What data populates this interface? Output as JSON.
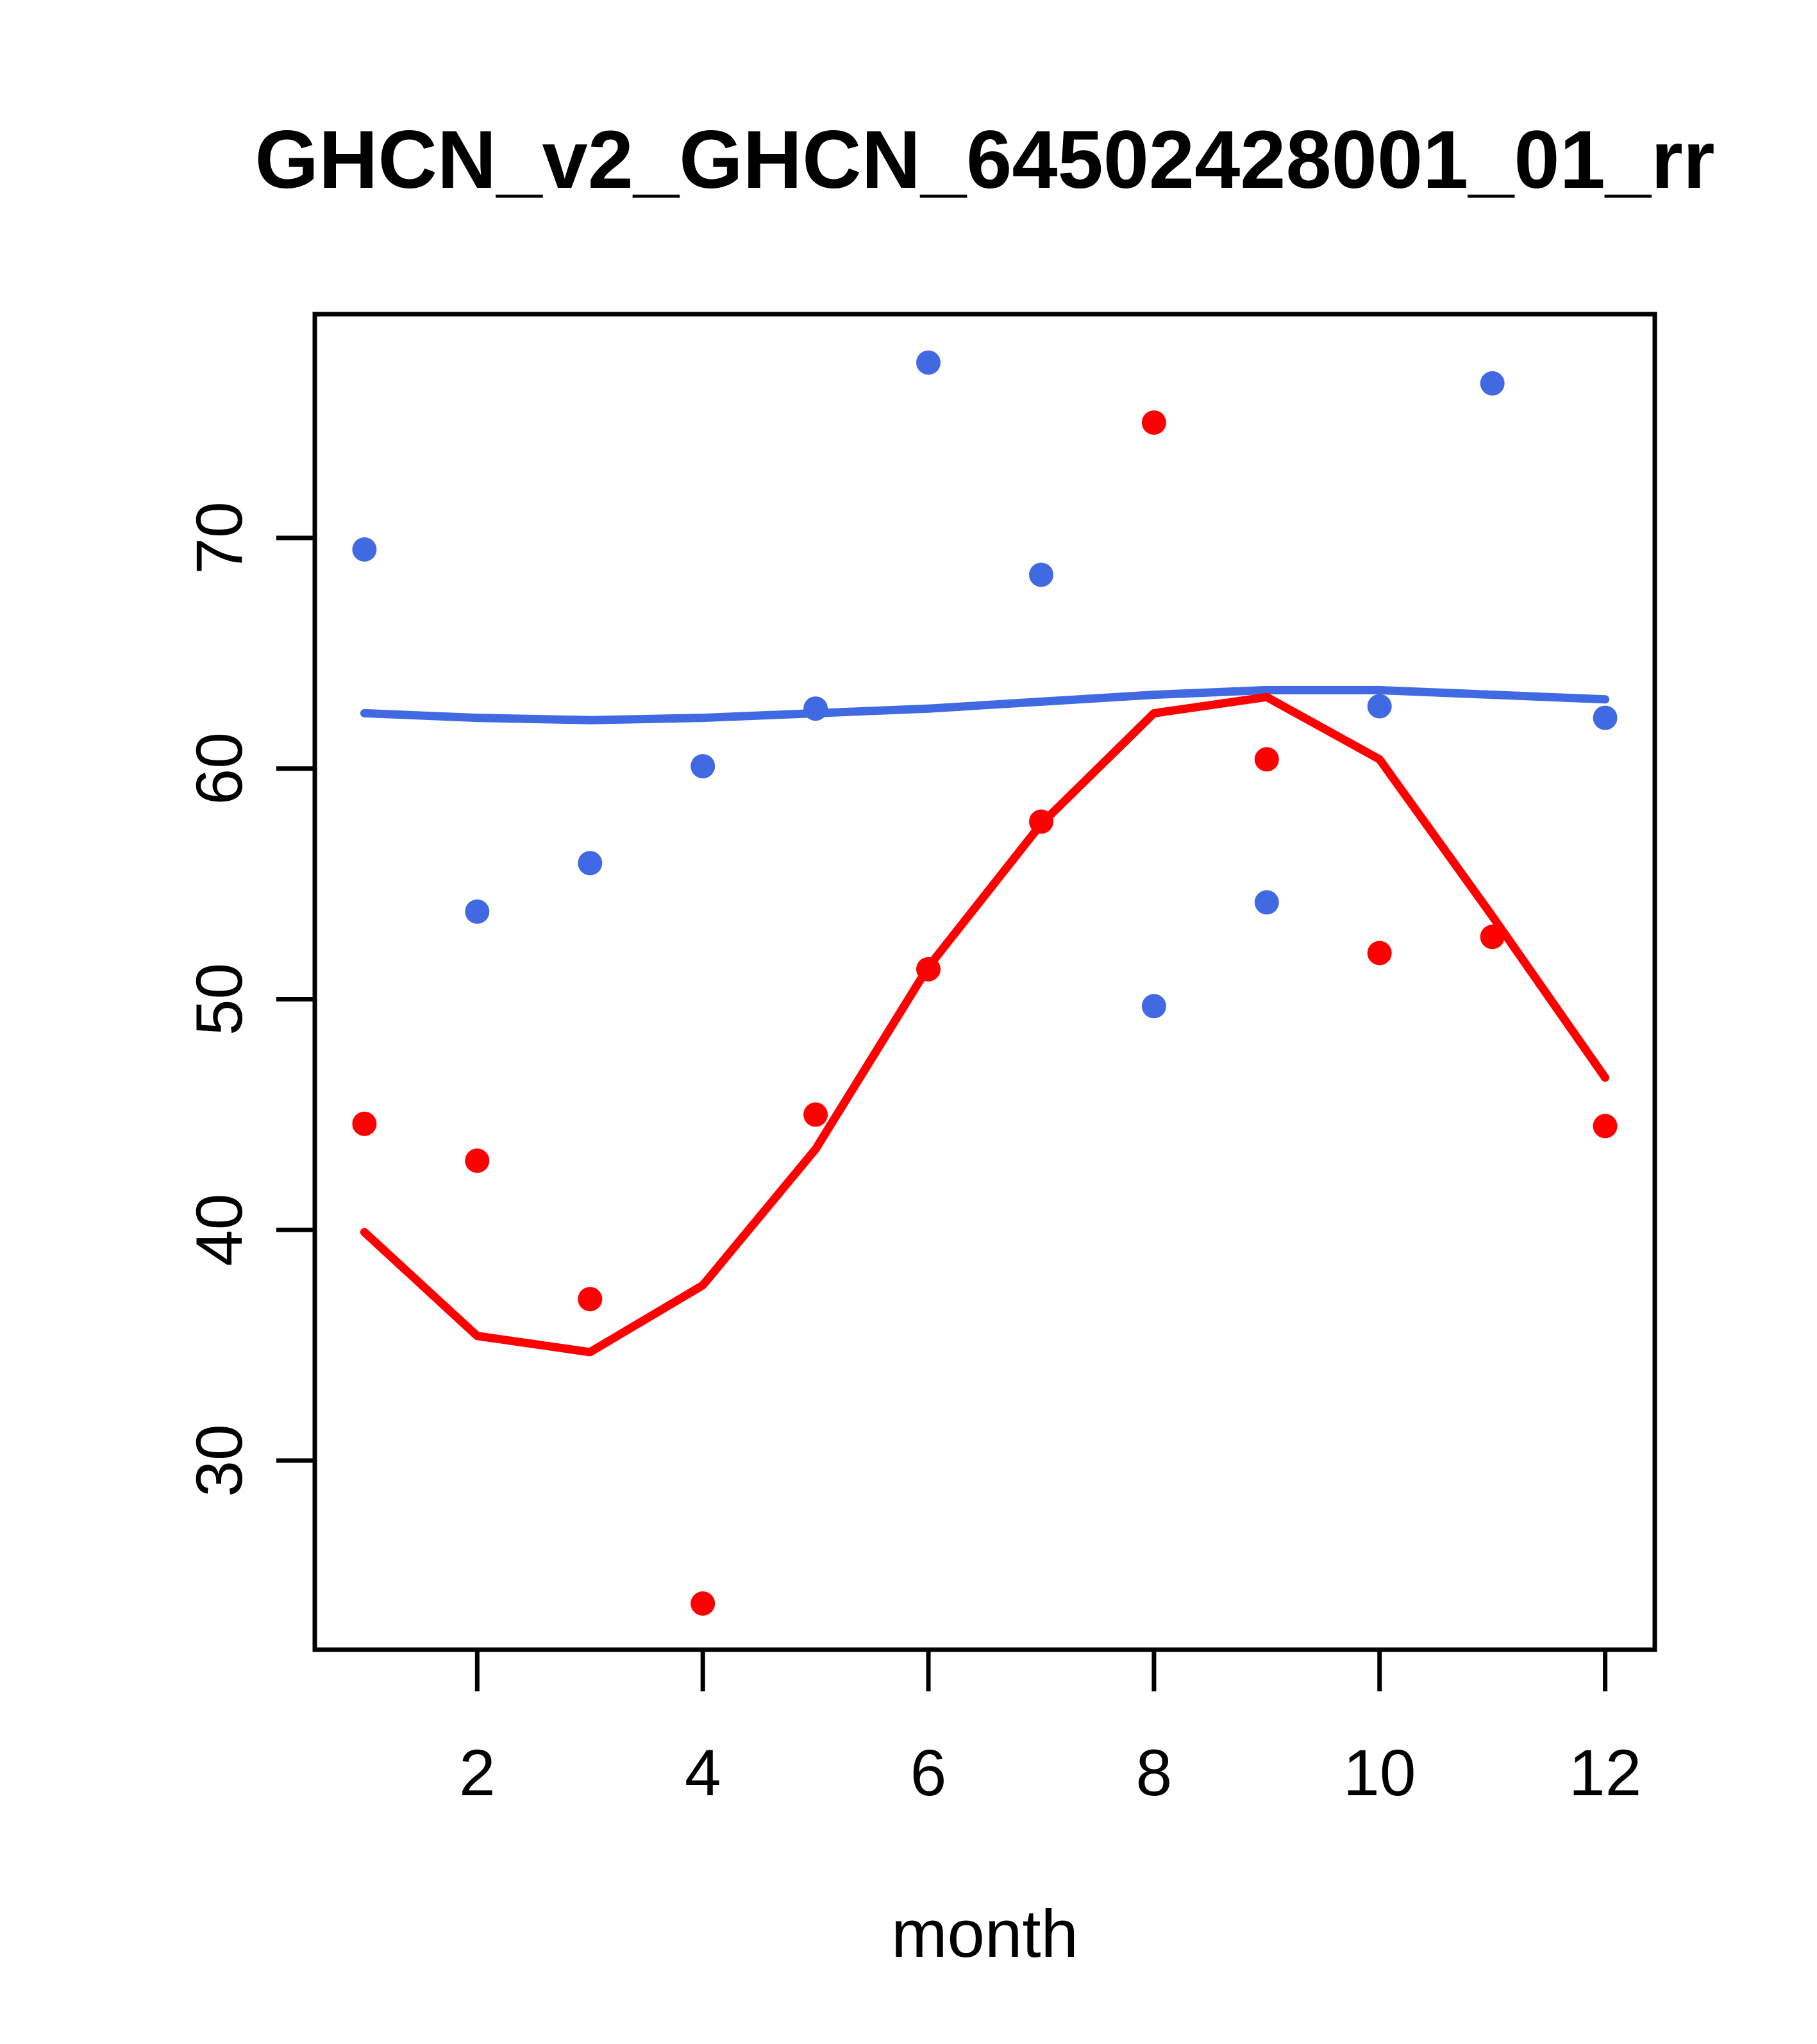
{
  "chart_data": {
    "type": "scatter",
    "title": "GHCN_v2_GHCN_64502428001_01_rr",
    "xlabel": "month",
    "ylabel": "",
    "x_ticks": [
      2,
      4,
      6,
      8,
      10,
      12
    ],
    "y_ticks": [
      30,
      40,
      50,
      60,
      70
    ],
    "xlim": [
      0.56,
      12.44
    ],
    "ylim": [
      21.8,
      79.7
    ],
    "grid": "off",
    "legend": "none",
    "x": [
      1,
      2,
      3,
      4,
      5,
      6,
      7,
      8,
      9,
      10,
      11,
      12
    ],
    "colors": {
      "blue": "#4169E1",
      "red": "#FF0000"
    },
    "series": [
      {
        "name": "blue-points",
        "style": "points",
        "color": "#4169E1",
        "values": [
          69.5,
          53.8,
          55.9,
          60.1,
          62.6,
          77.6,
          68.4,
          49.7,
          54.2,
          62.7,
          76.7,
          62.2
        ]
      },
      {
        "name": "blue-trend-line",
        "style": "line",
        "color": "#4169E1",
        "values": [
          62.4,
          62.2,
          62.1,
          62.2,
          62.4,
          62.6,
          62.9,
          63.2,
          63.4,
          63.4,
          63.2,
          63.0
        ]
      },
      {
        "name": "red-points",
        "style": "points",
        "color": "#FF0000",
        "values": [
          44.6,
          43.0,
          37.0,
          23.8,
          45.0,
          51.3,
          57.7,
          75.0,
          60.4,
          52.0,
          52.7,
          44.5
        ]
      },
      {
        "name": "red-trend-line",
        "style": "line",
        "color": "#FF0000",
        "values": [
          39.9,
          35.4,
          34.7,
          37.6,
          43.5,
          51.4,
          57.6,
          62.4,
          63.1,
          60.4,
          53.6,
          46.6
        ]
      }
    ]
  }
}
